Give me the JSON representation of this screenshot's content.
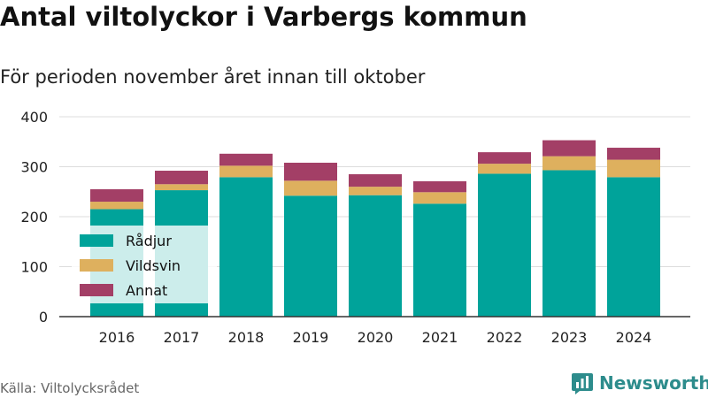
{
  "title": "Antal viltolyckor i Varbergs kommun",
  "subtitle": "För perioden november året innan till oktober",
  "source": "Källa: Viltolycksrådet",
  "brand": {
    "name": "Newsworthy",
    "icon": "bar-chart-logo-icon",
    "color": "#2d8c8c"
  },
  "chart_data": {
    "type": "bar",
    "stacked": true,
    "categories": [
      "2016",
      "2017",
      "2018",
      "2019",
      "2020",
      "2021",
      "2022",
      "2023",
      "2024"
    ],
    "series": [
      {
        "name": "Rådjur",
        "color": "#00a39a",
        "values": [
          215,
          253,
          279,
          242,
          243,
          226,
          286,
          293,
          279
        ]
      },
      {
        "name": "Vildsvin",
        "color": "#deb05e",
        "values": [
          15,
          12,
          23,
          30,
          17,
          23,
          20,
          28,
          35
        ]
      },
      {
        "name": "Annat",
        "color": "#a33f66",
        "values": [
          25,
          27,
          24,
          36,
          25,
          22,
          23,
          32,
          24
        ]
      }
    ],
    "ylim": [
      0,
      400
    ],
    "yticks": [
      0,
      100,
      200,
      300,
      400
    ],
    "grid": true,
    "legend": "bottom-left"
  }
}
